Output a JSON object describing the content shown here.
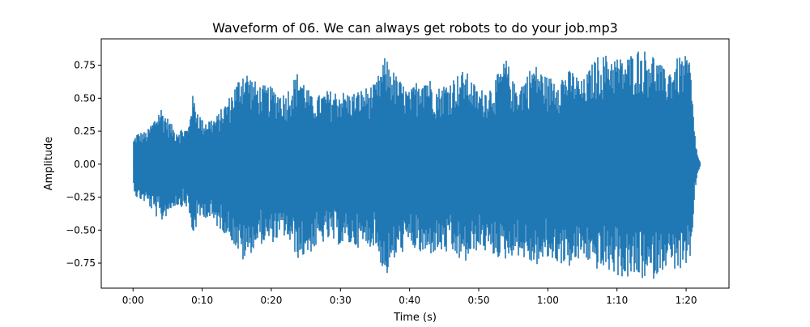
{
  "chart_data": {
    "type": "line",
    "title": "Waveform of 06. We can always get robots to do your job.mp3",
    "xlabel": "Time (s)",
    "ylabel": "Amplitude",
    "xlim": [
      -4.6,
      86.2
    ],
    "ylim": [
      -0.94,
      0.95
    ],
    "x_ticks": [
      {
        "value": 0,
        "label": "0:00"
      },
      {
        "value": 10,
        "label": "0:10"
      },
      {
        "value": 20,
        "label": "0:20"
      },
      {
        "value": 30,
        "label": "0:30"
      },
      {
        "value": 40,
        "label": "0:40"
      },
      {
        "value": 50,
        "label": "0:50"
      },
      {
        "value": 60,
        "label": "1:00"
      },
      {
        "value": 70,
        "label": "1:10"
      },
      {
        "value": 80,
        "label": "1:20"
      }
    ],
    "y_ticks": [
      {
        "value": 0.75,
        "label": "0.75"
      },
      {
        "value": 0.5,
        "label": "0.50"
      },
      {
        "value": 0.25,
        "label": "0.25"
      },
      {
        "value": 0.0,
        "label": "0.00"
      },
      {
        "value": -0.25,
        "label": "−0.25"
      },
      {
        "value": -0.5,
        "label": "−0.50"
      },
      {
        "value": -0.75,
        "label": "−0.75"
      }
    ],
    "grid": false,
    "series": [
      {
        "color": "#1f77b4",
        "envelope": {
          "time_s": [
            0.0,
            0.5,
            2.0,
            4.0,
            6.0,
            8.0,
            8.5,
            10.0,
            12.0,
            14.0,
            16.0,
            18.0,
            20.0,
            22.0,
            24.0,
            26.0,
            28.0,
            30.0,
            31.5,
            33.0,
            35.0,
            36.5,
            38.0,
            40.0,
            42.0,
            44.0,
            46.0,
            48.0,
            50.0,
            52.0,
            54.0,
            55.0,
            56.0,
            58.0,
            60.0,
            62.0,
            63.5,
            65.0,
            67.0,
            69.0,
            71.0,
            73.0,
            75.0,
            77.0,
            79.0,
            80.5,
            81.0,
            81.3,
            81.6,
            82.0
          ],
          "peak_max": [
            0.18,
            0.24,
            0.25,
            0.44,
            0.27,
            0.28,
            0.54,
            0.34,
            0.36,
            0.52,
            0.74,
            0.61,
            0.59,
            0.54,
            0.72,
            0.5,
            0.56,
            0.56,
            0.54,
            0.57,
            0.61,
            0.82,
            0.68,
            0.55,
            0.72,
            0.58,
            0.65,
            0.72,
            0.56,
            0.61,
            0.81,
            0.62,
            0.62,
            0.77,
            0.66,
            0.69,
            0.72,
            0.63,
            0.82,
            0.84,
            0.8,
            0.88,
            0.86,
            0.71,
            0.82,
            0.82,
            0.42,
            0.22,
            0.08,
            0.02
          ],
          "peak_min": [
            -0.17,
            -0.26,
            -0.3,
            -0.45,
            -0.32,
            -0.33,
            -0.56,
            -0.39,
            -0.47,
            -0.56,
            -0.75,
            -0.61,
            -0.6,
            -0.55,
            -0.73,
            -0.66,
            -0.58,
            -0.62,
            -0.62,
            -0.64,
            -0.62,
            -0.87,
            -0.72,
            -0.62,
            -0.71,
            -0.67,
            -0.69,
            -0.76,
            -0.64,
            -0.7,
            -0.73,
            -0.69,
            -0.7,
            -0.78,
            -0.73,
            -0.76,
            -0.79,
            -0.71,
            -0.8,
            -0.82,
            -0.87,
            -0.87,
            -0.89,
            -0.78,
            -0.81,
            -0.83,
            -0.44,
            -0.22,
            -0.08,
            -0.02
          ]
        }
      }
    ]
  }
}
